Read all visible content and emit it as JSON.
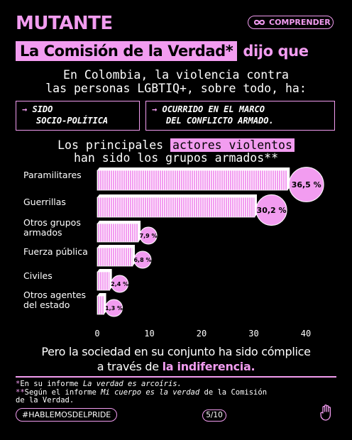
{
  "header": {
    "brand": "MUTANTE",
    "button_label": "COMPRENDER",
    "button_icon": "infinity-icon"
  },
  "headline": {
    "highlight": "La Comisión de la Verdad*",
    "rest": "dijo que"
  },
  "intro": {
    "line1": "En Colombia, la violencia contra",
    "line2": "las personas LGBTIQ+, sobre todo, ha:"
  },
  "tags": [
    {
      "line1": "SIDO",
      "line2": "SOCIO-POLÍTICA"
    },
    {
      "line1": "OCURRIDO EN EL MARCO",
      "line2": "DEL CONFLICTO ARMADO."
    }
  ],
  "actors": {
    "pre": "Los principales",
    "highlight": "actores violentos",
    "line2": "han sido los grupos armados**"
  },
  "chart_data": {
    "type": "bar",
    "orientation": "horizontal",
    "categories": [
      "Paramilitares",
      "Guerrillas",
      "Otros grupos armados",
      "Fuerza pública",
      "Civiles",
      "Otros agentes del estado"
    ],
    "category_lines": [
      [
        "Paramilitares"
      ],
      [
        "Guerrillas"
      ],
      [
        "Otros grupos",
        "armados"
      ],
      [
        "Fuerza pública"
      ],
      [
        "Civiles"
      ],
      [
        "Otros agentes",
        "del estado"
      ]
    ],
    "values": [
      36.5,
      30.2,
      7.9,
      6.8,
      2.4,
      1.3
    ],
    "data_labels": [
      "36,5 %",
      "30,2 %",
      "7,9 %",
      "6,8 %",
      "2,4 %",
      "1,3 %"
    ],
    "xticks": [
      0,
      10,
      20,
      30,
      40
    ],
    "xlim": [
      0,
      40
    ],
    "grid": false,
    "bar_color": "#f29cf0"
  },
  "bottom": {
    "line1": "Pero la sociedad en su conjunto ha sido cómplice",
    "line2_pre": "a través de",
    "line2_em": "la indiferencia."
  },
  "notes": {
    "n1_star": "*",
    "n1_pre": "En su informe ",
    "n1_italic": "La verdad es arcoíris.",
    "n2_star": "**",
    "n2_pre": "Según el informe ",
    "n2_italic": "Mi cuerpo es la verdad",
    "n2_post": " de la Comisión",
    "n2_line2": "de la Verdad."
  },
  "footer": {
    "hashtag": "#HABLEMOSDELPRIDE",
    "page": "5/10",
    "hand_icon": "raised-hand-icon"
  },
  "colors": {
    "accent": "#f29cf0",
    "background": "#000000"
  }
}
